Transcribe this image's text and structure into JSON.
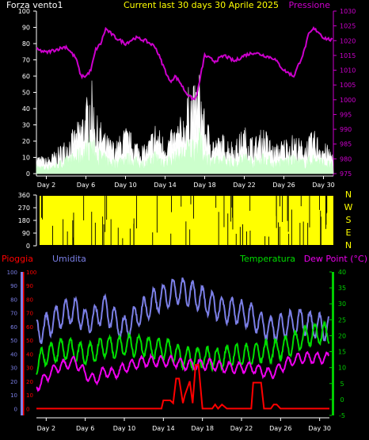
{
  "chart_data": [
    {
      "type": "line",
      "panel": "wind-pressure",
      "title": "Current last 30 days 30 Aprile 2025",
      "left_label": "Forza vento1",
      "right_label": "Pressione",
      "left_ticks": [
        0,
        10,
        20,
        30,
        40,
        50,
        60,
        70,
        80,
        90,
        100
      ],
      "right_ticks": [
        975,
        980,
        985,
        990,
        995,
        1000,
        1005,
        1010,
        1015,
        1020,
        1025,
        1030
      ],
      "x_labels": [
        "Day 2",
        "Day 6",
        "Day 10",
        "Day 14",
        "Day 18",
        "Day 22",
        "Day 26",
        "Day 30"
      ],
      "ylim_left": [
        0,
        100
      ],
      "ylim_right": [
        975,
        1030
      ],
      "grid": false,
      "colors": {
        "pressure": "#cc00cc",
        "gust": "#ffffff",
        "wind": "#ccffcc"
      },
      "series": [
        {
          "key": "pressure",
          "x": [
            1,
            2,
            3,
            4,
            5,
            5.5,
            6,
            6.5,
            7,
            7.5,
            8,
            9,
            10,
            11,
            12,
            13,
            13.5,
            14,
            14.5,
            15,
            15.5,
            16,
            16.5,
            17,
            17.3,
            17.7,
            18,
            19,
            20,
            21,
            22,
            23,
            24,
            25,
            26,
            27,
            28,
            28.5,
            29,
            29.5,
            30,
            31
          ],
          "values": [
            1017,
            1016,
            1017,
            1018,
            1014,
            1008,
            1008,
            1010,
            1017,
            1019,
            1024,
            1021,
            1019,
            1021,
            1020,
            1018,
            1014,
            1010,
            1006,
            1008,
            1006,
            1003,
            1001,
            1000,
            1003,
            1010,
            1015,
            1013,
            1015,
            1013,
            1015,
            1016,
            1015,
            1014,
            1010,
            1008,
            1016,
            1022,
            1024,
            1023,
            1021,
            1020
          ]
        },
        {
          "key": "gust",
          "x": [
            1,
            2,
            3,
            4,
            5,
            6,
            6.5,
            7,
            7.5,
            8,
            9,
            10,
            11,
            12,
            13,
            14,
            15,
            16,
            16.5,
            17,
            17.5,
            18,
            19,
            20,
            21,
            22,
            23,
            24,
            25,
            26,
            27,
            28,
            29,
            30,
            31
          ],
          "values": [
            10,
            8,
            12,
            18,
            24,
            36,
            50,
            30,
            26,
            20,
            16,
            24,
            18,
            14,
            26,
            18,
            24,
            32,
            48,
            44,
            52,
            30,
            18,
            20,
            16,
            24,
            18,
            24,
            14,
            18,
            20,
            16,
            22,
            16,
            12
          ]
        },
        {
          "key": "wind",
          "x": [
            1,
            2,
            3,
            4,
            5,
            6,
            6.5,
            7,
            7.5,
            8,
            9,
            10,
            11,
            12,
            13,
            14,
            15,
            16,
            16.5,
            17,
            17.5,
            18,
            19,
            20,
            21,
            22,
            23,
            24,
            25,
            26,
            27,
            28,
            29,
            30,
            31
          ],
          "values": [
            5,
            4,
            6,
            9,
            12,
            17,
            22,
            15,
            13,
            10,
            8,
            12,
            9,
            7,
            13,
            9,
            12,
            16,
            20,
            20,
            24,
            14,
            9,
            10,
            8,
            12,
            9,
            12,
            7,
            9,
            10,
            8,
            11,
            8,
            6
          ]
        }
      ]
    },
    {
      "type": "scatter",
      "panel": "wind-direction",
      "left_ticks": [
        0,
        90,
        180,
        270,
        360
      ],
      "ylim": [
        0,
        360
      ],
      "compass_labels": [
        "N",
        "W",
        "S",
        "E",
        "N"
      ],
      "color": "#ffff00",
      "note": "dense wind direction readings spanning 0-360 throughout all 30 days"
    },
    {
      "type": "line",
      "panel": "weather",
      "legend": [
        "Pioggia",
        "Umidita",
        "Temperatura",
        "Dew Point (°C)"
      ],
      "x_labels": [
        "Day 2",
        "Day 6",
        "Day 10",
        "Day 14",
        "Day 18",
        "Day 22",
        "Day 26",
        "Day 30"
      ],
      "humidity_ticks": [
        0,
        10,
        20,
        30,
        40,
        50,
        60,
        70,
        80,
        90,
        100
      ],
      "rain_ticks": [
        0,
        10,
        20,
        30,
        40,
        50,
        60,
        70,
        80,
        90,
        100
      ],
      "temp_ticks": [
        -5,
        0,
        5,
        10,
        15,
        20,
        25,
        30,
        35,
        40
      ],
      "ylim_humidity": [
        -5,
        100
      ],
      "ylim_temp": [
        -5,
        40
      ],
      "colors": {
        "rain": "#ff0000",
        "humidity": "#7b7fe6",
        "temperature": "#00dd00",
        "dewpoint": "#ee00ee"
      },
      "series": [
        {
          "key": "humidity",
          "name": "Umidita",
          "x": [
            1,
            2,
            3,
            4,
            5,
            6,
            7,
            8,
            9,
            10,
            11,
            12,
            13,
            14,
            15,
            16,
            17,
            18,
            19,
            20,
            21,
            22,
            23,
            24,
            25,
            26,
            27,
            28,
            29,
            30,
            31
          ],
          "values": [
            55,
            60,
            66,
            70,
            72,
            64,
            66,
            74,
            64,
            58,
            66,
            72,
            78,
            82,
            86,
            86,
            84,
            80,
            76,
            72,
            72,
            70,
            68,
            62,
            58,
            60,
            62,
            64,
            62,
            60,
            58
          ]
        },
        {
          "key": "temperature",
          "name": "Temperatura",
          "x": [
            1,
            2,
            3,
            4,
            5,
            6,
            7,
            8,
            9,
            10,
            11,
            12,
            13,
            14,
            15,
            16,
            17,
            18,
            19,
            20,
            21,
            22,
            23,
            24,
            25,
            26,
            27,
            28,
            29,
            30,
            31
          ],
          "values": [
            11,
            14,
            15,
            16,
            15,
            14,
            15,
            17,
            16,
            17,
            17,
            17,
            16,
            16,
            15,
            13,
            13,
            13,
            13,
            13,
            14,
            14,
            14,
            15,
            15,
            16,
            17,
            19,
            20,
            21,
            20
          ]
        },
        {
          "key": "dewpoint",
          "name": "Dew Point (°C)",
          "x": [
            1,
            2,
            3,
            4,
            5,
            6,
            7,
            8,
            9,
            10,
            11,
            12,
            13,
            14,
            15,
            16,
            17,
            18,
            19,
            20,
            21,
            22,
            23,
            24,
            25,
            26,
            27,
            28,
            29,
            30,
            31
          ],
          "values": [
            4,
            7,
            10,
            11,
            12,
            8,
            6,
            9,
            8,
            10,
            11,
            12,
            12,
            12,
            12,
            11,
            11,
            11,
            11,
            10,
            10,
            10,
            10,
            9,
            8,
            10,
            12,
            13,
            13,
            13,
            13
          ]
        },
        {
          "key": "rain",
          "name": "Pioggia",
          "x": [
            1,
            13.8,
            14,
            14.7,
            15,
            15.3,
            15.6,
            16,
            16.2,
            16.5,
            16.7,
            17,
            17.3,
            17.6,
            18,
            19,
            19.3,
            19.6,
            20,
            20.5,
            21,
            22,
            23,
            23.2,
            24,
            24.3,
            25,
            25.3,
            25.6,
            26,
            27,
            31
          ],
          "values": [
            0,
            0,
            6,
            6,
            4,
            22,
            22,
            4,
            10,
            16,
            20,
            4,
            32,
            32,
            0,
            0,
            3,
            0,
            3,
            0,
            0,
            0,
            0,
            19,
            19,
            0,
            0,
            3,
            3,
            0,
            0,
            0
          ]
        }
      ]
    }
  ]
}
